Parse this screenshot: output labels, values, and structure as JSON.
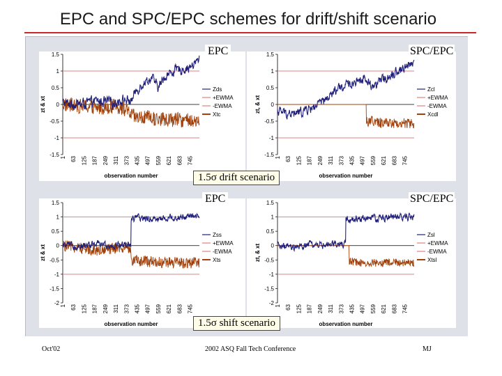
{
  "slide": {
    "title": "EPC and SPC/EPC schemes for drift/shift scenario",
    "footer_left": "Oct'02",
    "footer_center": "2002 ASQ Fall Tech Conference",
    "footer_right": "MJ"
  },
  "labels": {
    "epc_top": "EPC",
    "spcepc_top": "SPC/EPC",
    "epc_bottom": "EPC",
    "spcepc_bottom": "SPC/EPC",
    "drift_scenario": "1.5σ drift scenario",
    "shift_scenario": "1.5σ shift scenario"
  },
  "colors": {
    "z_series": "#1f1f7a",
    "x_series": "#a0400a",
    "limits": "#e08080"
  },
  "chart_data": [
    {
      "type": "line",
      "panel": "epc-drift",
      "xlabel": "observation number",
      "ylabel": "zt & xt",
      "ylim": [
        -1.5,
        1.5
      ],
      "yticks": [
        "1.5",
        "1",
        "0.5",
        "0",
        "-0.5",
        "-1",
        "-1.5"
      ],
      "x_ticks": [
        "1",
        "63",
        "125",
        "187",
        "249",
        "311",
        "373",
        "435",
        "497",
        "559",
        "621",
        "683",
        "745"
      ],
      "n": 800,
      "z_path": [
        [
          1,
          0.05
        ],
        [
          100,
          0.0
        ],
        [
          200,
          0.1
        ],
        [
          300,
          0.05
        ],
        [
          350,
          0.15
        ],
        [
          400,
          0.1
        ],
        [
          430,
          0.4
        ],
        [
          460,
          0.6
        ],
        [
          520,
          0.8
        ],
        [
          560,
          0.5
        ],
        [
          600,
          0.85
        ],
        [
          650,
          1.0
        ],
        [
          700,
          1.05
        ],
        [
          760,
          1.15
        ],
        [
          800,
          1.35
        ]
      ],
      "x_path": [
        [
          1,
          0.0
        ],
        [
          100,
          -0.05
        ],
        [
          200,
          -0.1
        ],
        [
          300,
          -0.05
        ],
        [
          350,
          -0.1
        ],
        [
          400,
          -0.3
        ],
        [
          430,
          -0.4
        ],
        [
          500,
          -0.4
        ],
        [
          560,
          -0.45
        ],
        [
          650,
          -0.45
        ],
        [
          800,
          -0.5
        ]
      ],
      "z_noise": 0.12,
      "x_noise": 0.22,
      "ucl": 1,
      "lcl": -1,
      "legend": [
        "Zds",
        "+EWMA",
        "-EWMA",
        "Xtc"
      ]
    },
    {
      "type": "line",
      "panel": "spcepc-drift",
      "xlabel": "observation number",
      "ylabel": "zt, & xt",
      "ylim": [
        -1.5,
        1.5
      ],
      "yticks": [
        "1.5",
        "1",
        "0.5",
        "0",
        "-0.5",
        "-1",
        "-1.5"
      ],
      "x_ticks": [
        "1",
        "63",
        "125",
        "187",
        "249",
        "311",
        "373",
        "435",
        "497",
        "559",
        "621",
        "683",
        "745"
      ],
      "n": 800,
      "z_path": [
        [
          1,
          -0.2
        ],
        [
          100,
          -0.3
        ],
        [
          200,
          -0.1
        ],
        [
          280,
          0.1
        ],
        [
          340,
          0.4
        ],
        [
          380,
          0.5
        ],
        [
          420,
          0.6
        ],
        [
          500,
          0.8
        ],
        [
          560,
          0.55
        ],
        [
          620,
          0.75
        ],
        [
          680,
          0.95
        ],
        [
          740,
          1.1
        ],
        [
          800,
          1.3
        ]
      ],
      "x_path": [
        [
          1,
          0.0
        ],
        [
          520,
          0.0
        ],
        [
          521,
          -0.5
        ],
        [
          560,
          -0.5
        ],
        [
          600,
          -0.55
        ],
        [
          700,
          -0.55
        ],
        [
          800,
          -0.6
        ]
      ],
      "z_noise": 0.12,
      "x_noise": 0.16,
      "x_flat_until": 520,
      "ucl": 1,
      "lcl": -1,
      "legend": [
        "Zcl",
        "+EWMA",
        "-EWMA",
        "Xcdl"
      ]
    },
    {
      "type": "line",
      "panel": "epc-shift",
      "xlabel": "observation number",
      "ylabel": "zt & xt",
      "ylim": [
        -2,
        1.5
      ],
      "yticks": [
        "1.5",
        "1",
        "0.5",
        "0",
        "-0.5",
        "-1",
        "-1.5",
        "-2"
      ],
      "x_ticks": [
        "1",
        "63",
        "125",
        "187",
        "249",
        "311",
        "373",
        "435",
        "497",
        "559",
        "621",
        "683",
        "745"
      ],
      "n": 800,
      "z_path": [
        [
          1,
          0.0
        ],
        [
          120,
          0.0
        ],
        [
          200,
          0.05
        ],
        [
          300,
          0.0
        ],
        [
          399,
          0.05
        ],
        [
          400,
          0.95
        ],
        [
          500,
          0.95
        ],
        [
          600,
          0.95
        ],
        [
          700,
          1.0
        ],
        [
          800,
          1.0
        ]
      ],
      "x_path": [
        [
          1,
          0.0
        ],
        [
          120,
          -0.1
        ],
        [
          200,
          -0.15
        ],
        [
          300,
          -0.1
        ],
        [
          399,
          -0.1
        ],
        [
          400,
          -0.5
        ],
        [
          500,
          -0.55
        ],
        [
          600,
          -0.6
        ],
        [
          700,
          -0.6
        ],
        [
          800,
          -0.6
        ]
      ],
      "z_noise": 0.1,
      "x_noise": 0.2,
      "ucl": 1,
      "lcl": -1,
      "legend": [
        "Zss",
        "+EWMA",
        "-EWMA",
        "Xts"
      ]
    },
    {
      "type": "line",
      "panel": "spcepc-shift",
      "xlabel": "observation number",
      "ylabel": "zt, & xt",
      "ylim": [
        -2,
        1.5
      ],
      "yticks": [
        "1.5",
        "1",
        "0.5",
        "0",
        "-0.5",
        "-1",
        "-1.5",
        "-2"
      ],
      "x_ticks": [
        "1",
        "63",
        "125",
        "187",
        "249",
        "311",
        "373",
        "435",
        "497",
        "559",
        "621",
        "683",
        "745"
      ],
      "n": 800,
      "z_path": [
        [
          1,
          0.0
        ],
        [
          100,
          -0.1
        ],
        [
          200,
          0.05
        ],
        [
          300,
          0.0
        ],
        [
          399,
          0.05
        ],
        [
          400,
          0.9
        ],
        [
          500,
          0.95
        ],
        [
          600,
          0.95
        ],
        [
          700,
          1.0
        ],
        [
          800,
          1.0
        ]
      ],
      "x_path": [
        [
          1,
          0.0
        ],
        [
          420,
          0.0
        ],
        [
          421,
          -0.55
        ],
        [
          500,
          -0.6
        ],
        [
          600,
          -0.6
        ],
        [
          700,
          -0.6
        ],
        [
          800,
          -0.6
        ]
      ],
      "z_noise": 0.1,
      "x_noise": 0.14,
      "x_flat_until": 420,
      "ucl": 1,
      "lcl": -1,
      "legend": [
        "Zsl",
        "+EWMA",
        "-EWMA",
        "Xtsl"
      ]
    }
  ]
}
